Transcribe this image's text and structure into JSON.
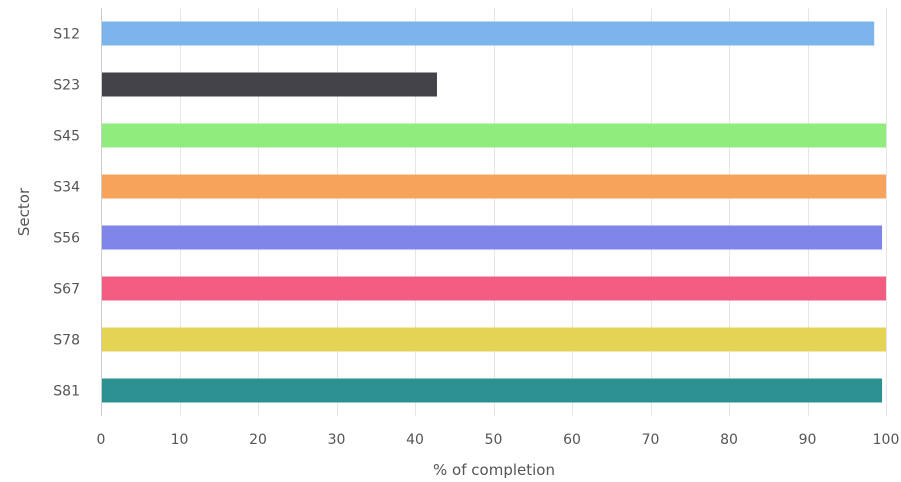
{
  "chart_data": {
    "type": "bar",
    "orientation": "horizontal",
    "title": "",
    "xlabel": "% of completion",
    "ylabel": "Sector",
    "xlim": [
      0,
      100
    ],
    "xticks": [
      0,
      10,
      20,
      30,
      40,
      50,
      60,
      70,
      80,
      90,
      100
    ],
    "grid": true,
    "categories": [
      "S12",
      "S23",
      "S45",
      "S34",
      "S56",
      "S67",
      "S78",
      "S81"
    ],
    "values": [
      98.5,
      42.8,
      100,
      100,
      99.5,
      100,
      100,
      99.5
    ],
    "colors": [
      "#7cb5ec",
      "#434348",
      "#90ed7d",
      "#f7a35c",
      "#8085e9",
      "#f15c80",
      "#e4d354",
      "#2b908f"
    ]
  }
}
